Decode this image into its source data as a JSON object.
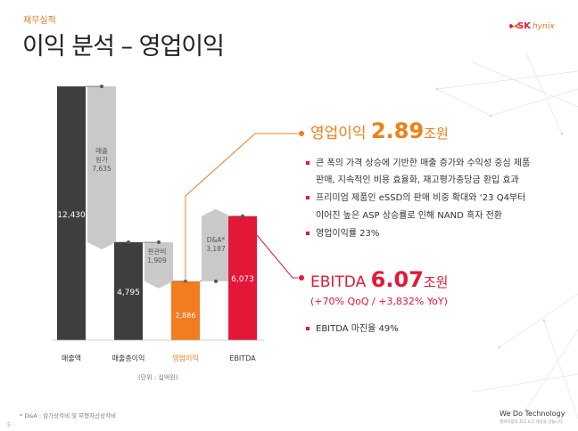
{
  "header": {
    "category": "재무실적",
    "title": "이익 분석 – 영업이익",
    "logo_sk": "SK",
    "logo_hynix": "hynix"
  },
  "colors": {
    "dark": "#3e3e3e",
    "gray": "#c8c8c8",
    "orange": "#f37c20",
    "red": "#e31837"
  },
  "chart_data": {
    "type": "bar",
    "subtype": "waterfall",
    "categories": [
      "매출액",
      "매출총이익",
      "영업이익",
      "EBITDA"
    ],
    "steps": [
      {
        "label": "매출액",
        "value": 12430,
        "value_label": "12,430",
        "kind": "total",
        "color": "dark"
      },
      {
        "label": "매출원가",
        "value": -7635,
        "value_label": "7,635",
        "kind": "delta",
        "color": "gray"
      },
      {
        "label": "매출총이익",
        "value": 4795,
        "value_label": "4,795",
        "kind": "total",
        "color": "dark"
      },
      {
        "label": "판관비",
        "value": -1909,
        "value_label": "1,909",
        "kind": "delta",
        "color": "gray"
      },
      {
        "label": "영업이익",
        "value": 2886,
        "value_label": "2,886",
        "kind": "total",
        "color": "orange"
      },
      {
        "label": "D&A*",
        "value": 3187,
        "value_label": "3,187",
        "kind": "delta",
        "color": "gray"
      },
      {
        "label": "EBITDA",
        "value": 6073,
        "value_label": "6,073",
        "kind": "total",
        "color": "red"
      }
    ],
    "delta_labels": [
      "매출\n원가",
      "판관비",
      "D&A*"
    ],
    "unit_note": "(단위 : 십억원)",
    "ylim": [
      0,
      12430
    ]
  },
  "op_profit": {
    "label": "영업이익",
    "value": "2.89",
    "unit": "조원",
    "bullets": [
      "큰 폭의 가격 상승에 기반한 매출 증가와 수익성 중심 제품",
      "판매, 지속적인 비용 효율화, 재고평가충당금 환입 효과",
      "프리미엄 제품인 eSSD의 판매 비중 확대와 ‘23 Q4부터",
      "이어진 높은 ASP 상승률로 인해 NAND 흑자 전환",
      "영업이익률 23%"
    ]
  },
  "ebitda": {
    "label": "EBITDA",
    "value": "6.07",
    "unit": "조원",
    "sub": "(+70% QoQ / +3,832% YoY)",
    "bullets": [
      "EBITDA 마진율 49%"
    ]
  },
  "footer": {
    "footnote": "* D&A : 감가상각비 및 무형자산상각비",
    "page": "5",
    "slogan": "We Do Technology",
    "slogan_sub": "행복지향의 최고 ICT 세상을 만듭니다"
  }
}
